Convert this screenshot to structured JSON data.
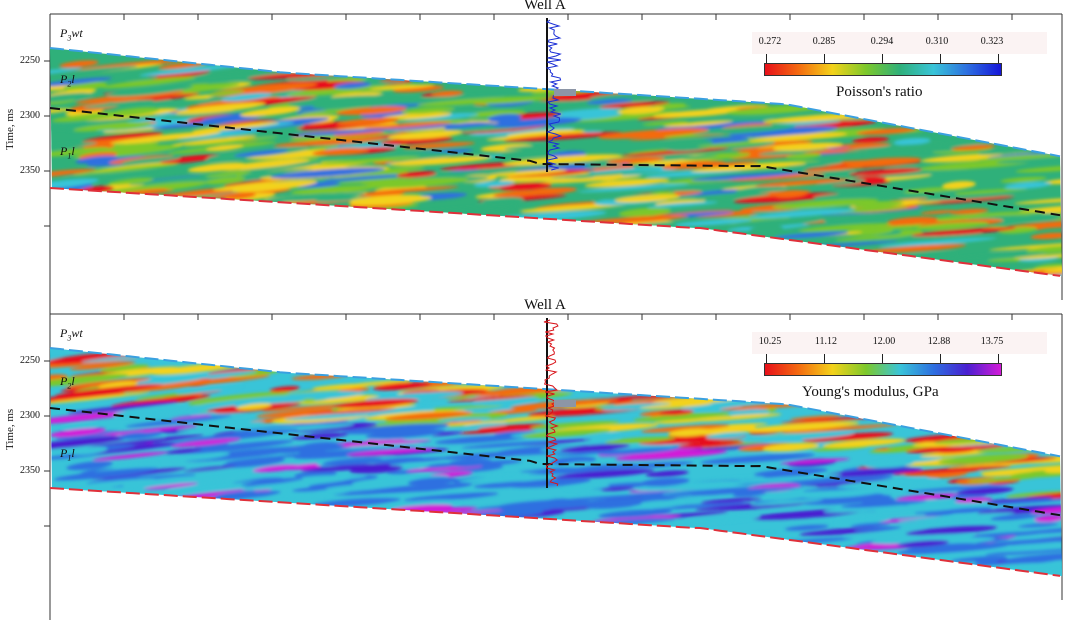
{
  "panels": [
    {
      "well_title": "Well A",
      "ylabel": "Time, ms",
      "ticks": [
        "2250",
        "2300",
        "2350"
      ],
      "formations": {
        "top": "P3wt",
        "mid": "P2l",
        "lower": "P1l"
      },
      "legend": {
        "name": "Poisson's ratio",
        "values": [
          "0.272",
          "0.285",
          "0.294",
          "0.310",
          "0.323"
        ],
        "scale": [
          "#e8101a",
          "#f46b10",
          "#f3d21a",
          "#7cc82b",
          "#2fb07a",
          "#39c4d8",
          "#2d6fe0",
          "#1616d8"
        ]
      },
      "colors": {
        "well_log": "#1b2fd6"
      }
    },
    {
      "well_title": "Well A",
      "ylabel": "Time, ms",
      "ticks": [
        "2250",
        "2300",
        "2350"
      ],
      "formations": {
        "top": "P3wt",
        "mid": "P2l",
        "lower": "P1l"
      },
      "legend": {
        "name": "Young's modulus,  GPa",
        "values": [
          "10.25",
          "11.12",
          "12.00",
          "12.88",
          "13.75"
        ],
        "scale": [
          "#e8101a",
          "#f46b10",
          "#f3d21a",
          "#7cc82b",
          "#39c4d8",
          "#2d6fe0",
          "#4a1fd0",
          "#d21cd8"
        ]
      },
      "colors": {
        "well_log": "#d9141a"
      }
    }
  ]
}
